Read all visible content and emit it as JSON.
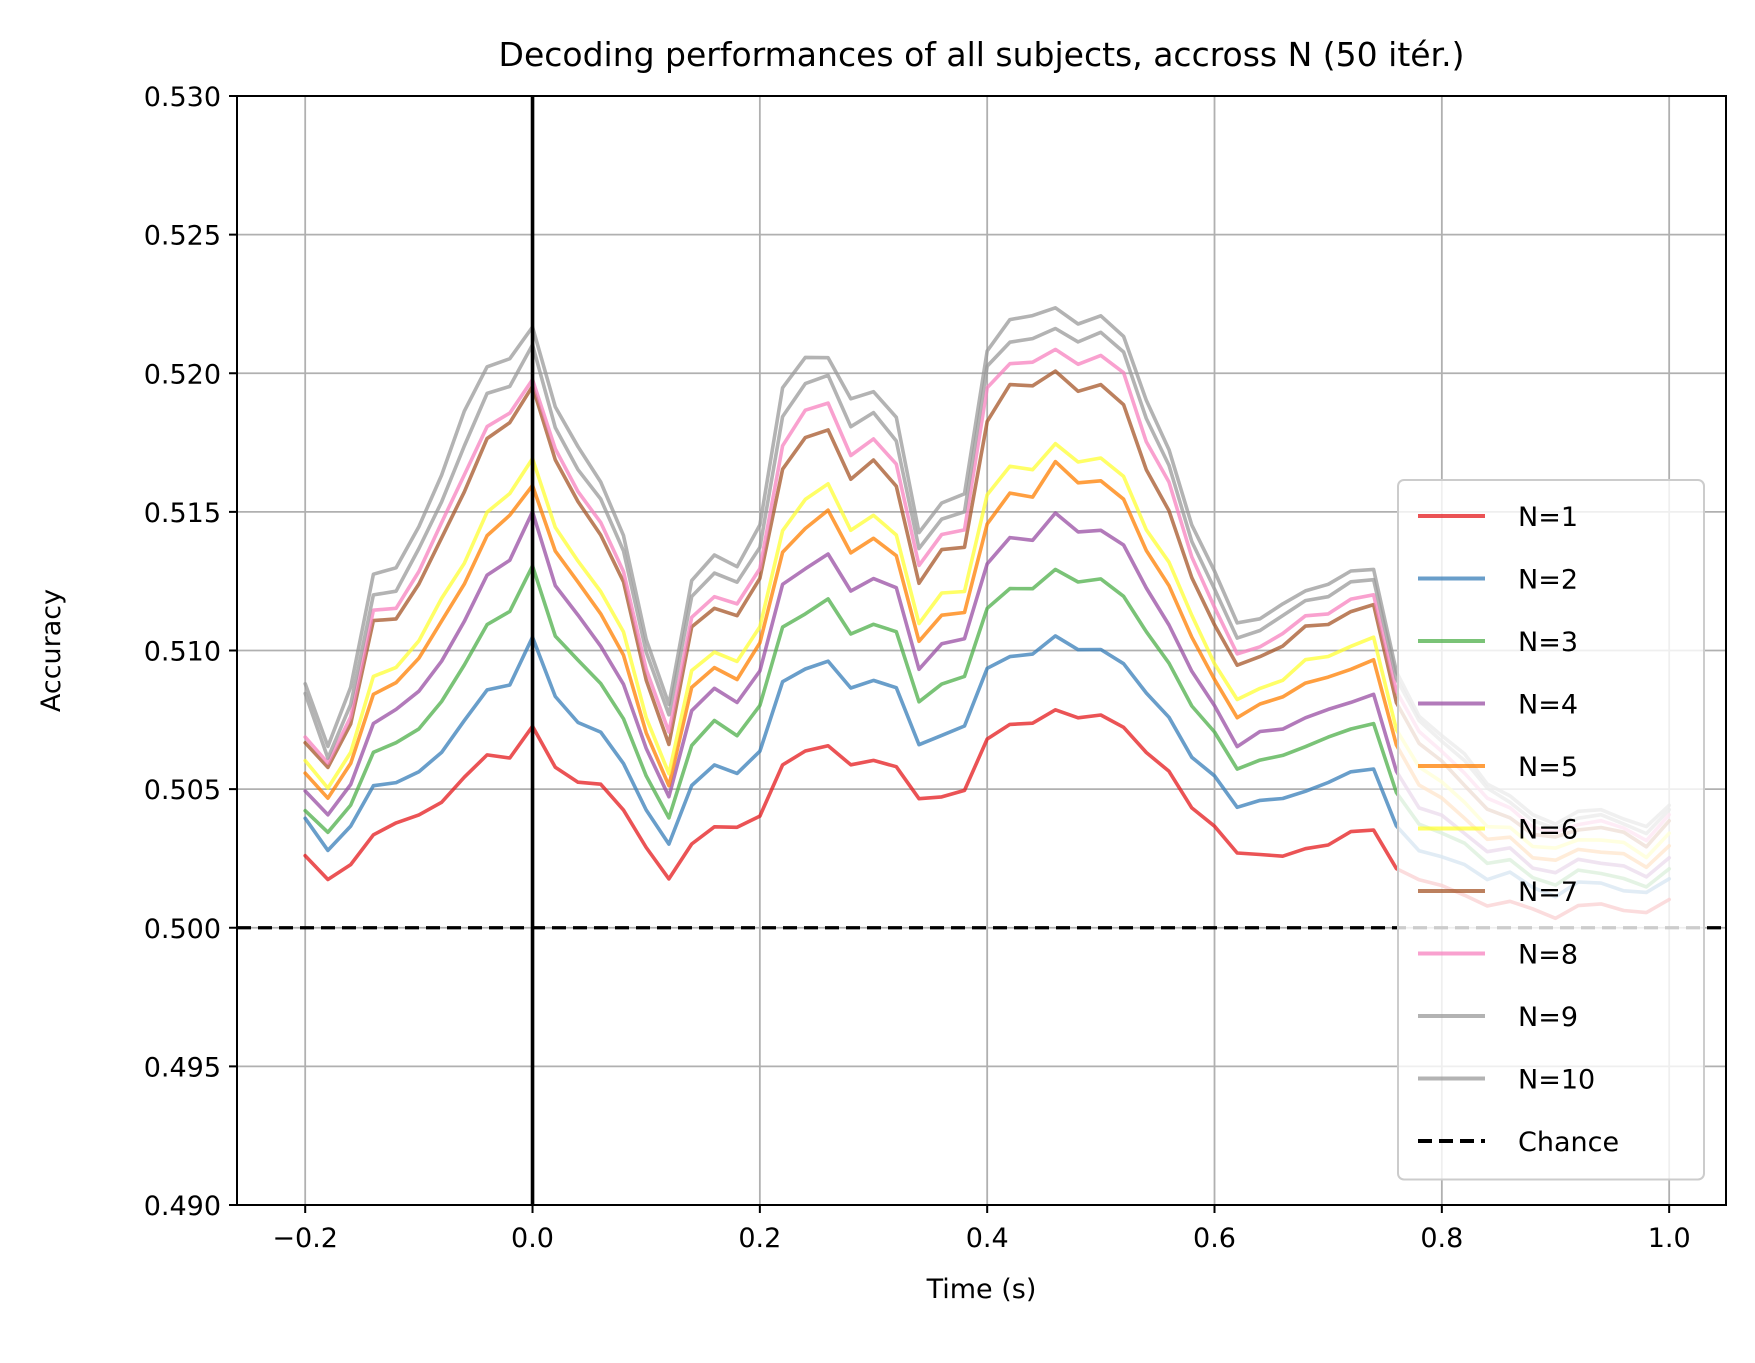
{
  "chart_data": {
    "type": "line",
    "title": "Decoding performances of all subjects, accross N (50 itér.)",
    "xlabel": "Time (s)",
    "ylabel": "Accuracy",
    "xlim": [
      -0.26,
      1.05
    ],
    "ylim": [
      0.49,
      0.53
    ],
    "xticks": [
      -0.2,
      0.0,
      0.2,
      0.4,
      0.6,
      0.8,
      1.0
    ],
    "xtick_labels": [
      "−0.2",
      "0.0",
      "0.2",
      "0.4",
      "0.6",
      "0.8",
      "1.0"
    ],
    "yticks": [
      0.49,
      0.495,
      0.5,
      0.505,
      0.51,
      0.515,
      0.52,
      0.525,
      0.53
    ],
    "ytick_labels": [
      "0.490",
      "0.495",
      "0.500",
      "0.505",
      "0.510",
      "0.515",
      "0.520",
      "0.525",
      "0.530"
    ],
    "grid": true,
    "legend_position": "lower-right",
    "stimulus_onset_x": 0.0,
    "x": [
      -0.2,
      -0.18,
      -0.16,
      -0.14,
      -0.12,
      -0.1,
      -0.08,
      -0.06,
      -0.04,
      -0.02,
      0.0,
      0.02,
      0.04,
      0.06,
      0.08,
      0.1,
      0.12,
      0.14,
      0.16,
      0.18,
      0.2,
      0.22,
      0.24,
      0.26,
      0.28,
      0.3,
      0.32,
      0.34,
      0.36,
      0.38,
      0.4,
      0.42,
      0.44,
      0.46,
      0.48,
      0.5,
      0.52,
      0.54,
      0.56,
      0.58,
      0.6,
      0.62,
      0.64,
      0.66,
      0.68,
      0.7,
      0.72,
      0.74,
      0.76,
      0.78,
      0.8,
      0.82,
      0.84,
      0.86,
      0.88,
      0.9,
      0.92,
      0.94,
      0.96,
      0.98,
      1.0
    ],
    "series": [
      {
        "name": "N=1",
        "color": "#e41a1c",
        "values": [
          0.5026,
          0.5018,
          0.5022,
          0.5034,
          0.5038,
          0.504,
          0.5046,
          0.5054,
          0.5062,
          0.5062,
          0.5072,
          0.5058,
          0.5053,
          0.5051,
          0.5043,
          0.5029,
          0.5017,
          0.5031,
          0.5036,
          0.5036,
          0.5041,
          0.5058,
          0.5064,
          0.5066,
          0.5058,
          0.5061,
          0.5058,
          0.5046,
          0.5048,
          0.5049,
          0.5068,
          0.5074,
          0.5073,
          0.5079,
          0.5076,
          0.5076,
          0.5073,
          0.5063,
          0.5056,
          0.5044,
          0.5036,
          0.5027,
          0.5027,
          0.5025,
          0.5029,
          0.503,
          0.5034,
          0.5036,
          0.5021,
          0.5017,
          0.5016,
          0.5011,
          0.5008,
          0.501,
          0.5006,
          0.5004,
          0.5008,
          0.5008,
          0.5007,
          0.5005,
          0.501
        ]
      },
      {
        "name": "N=2",
        "color": "#377eb8",
        "values": [
          0.504,
          0.5028,
          0.5036,
          0.5052,
          0.5052,
          0.5056,
          0.5064,
          0.5074,
          0.5086,
          0.5088,
          0.5104,
          0.5084,
          0.5074,
          0.507,
          0.506,
          0.5042,
          0.503,
          0.5052,
          0.5058,
          0.5056,
          0.5064,
          0.5088,
          0.5094,
          0.5096,
          0.5086,
          0.509,
          0.5086,
          0.5066,
          0.507,
          0.5072,
          0.5094,
          0.5098,
          0.5098,
          0.5106,
          0.51,
          0.51,
          0.5096,
          0.5084,
          0.5076,
          0.5062,
          0.5054,
          0.5044,
          0.5046,
          0.5046,
          0.505,
          0.5052,
          0.5056,
          0.5058,
          0.5036,
          0.5028,
          0.5026,
          0.5022,
          0.5018,
          0.502,
          0.5014,
          0.5012,
          0.5016,
          0.5016,
          0.5014,
          0.5012,
          0.5018
        ]
      },
      {
        "name": "N=3",
        "color": "#4daf4a",
        "values": [
          0.5043,
          0.5034,
          0.5044,
          0.5064,
          0.5066,
          0.5072,
          0.5082,
          0.5094,
          0.511,
          0.5114,
          0.513,
          0.5106,
          0.5096,
          0.5088,
          0.5076,
          0.5054,
          0.504,
          0.5066,
          0.5074,
          0.507,
          0.508,
          0.5108,
          0.5114,
          0.5118,
          0.5106,
          0.511,
          0.5106,
          0.5082,
          0.5088,
          0.509,
          0.5116,
          0.5122,
          0.5122,
          0.513,
          0.5124,
          0.5126,
          0.512,
          0.5106,
          0.5096,
          0.508,
          0.507,
          0.5058,
          0.506,
          0.5062,
          0.5066,
          0.5068,
          0.5072,
          0.5074,
          0.5048,
          0.5038,
          0.5034,
          0.503,
          0.5024,
          0.5024,
          0.5018,
          0.5016,
          0.502,
          0.502,
          0.5018,
          0.5014,
          0.5022
        ]
      },
      {
        "name": "N=4",
        "color": "#984ea3",
        "values": [
          0.505,
          0.504,
          0.5052,
          0.5074,
          0.5078,
          0.5086,
          0.5096,
          0.511,
          0.5128,
          0.5132,
          0.515,
          0.5124,
          0.5112,
          0.5102,
          0.5088,
          0.5064,
          0.5048,
          0.5078,
          0.5086,
          0.5082,
          0.5092,
          0.5124,
          0.513,
          0.5134,
          0.5122,
          0.5126,
          0.5122,
          0.5094,
          0.5102,
          0.5104,
          0.5132,
          0.514,
          0.514,
          0.515,
          0.5142,
          0.5144,
          0.5138,
          0.5122,
          0.511,
          0.5092,
          0.508,
          0.5066,
          0.507,
          0.5072,
          0.5076,
          0.5078,
          0.5082,
          0.5084,
          0.5056,
          0.5044,
          0.504,
          0.5034,
          0.5028,
          0.5028,
          0.5022,
          0.502,
          0.5024,
          0.5024,
          0.5022,
          0.5018,
          0.5026
        ]
      },
      {
        "name": "N=5",
        "color": "#ff7f00",
        "values": [
          0.5056,
          0.5046,
          0.506,
          0.5084,
          0.5088,
          0.5098,
          0.511,
          0.5124,
          0.5142,
          0.5148,
          0.516,
          0.5136,
          0.5124,
          0.5114,
          0.5098,
          0.507,
          0.5052,
          0.5086,
          0.5094,
          0.509,
          0.5102,
          0.5136,
          0.5144,
          0.515,
          0.5136,
          0.514,
          0.5134,
          0.5104,
          0.5112,
          0.5114,
          0.5146,
          0.5156,
          0.5156,
          0.5168,
          0.516,
          0.5162,
          0.5154,
          0.5136,
          0.5124,
          0.5104,
          0.509,
          0.5076,
          0.508,
          0.5084,
          0.5088,
          0.509,
          0.5094,
          0.5096,
          0.5066,
          0.5052,
          0.5046,
          0.504,
          0.5032,
          0.5032,
          0.5026,
          0.5024,
          0.5028,
          0.5028,
          0.5026,
          0.5022,
          0.503
        ]
      },
      {
        "name": "N=6",
        "color": "#ffff33",
        "values": [
          0.506,
          0.505,
          0.5064,
          0.509,
          0.5094,
          0.5104,
          0.5118,
          0.5132,
          0.515,
          0.5156,
          0.517,
          0.5144,
          0.5132,
          0.5122,
          0.5106,
          0.5076,
          0.5056,
          0.5092,
          0.51,
          0.5096,
          0.5108,
          0.5144,
          0.5154,
          0.516,
          0.5144,
          0.5148,
          0.5142,
          0.511,
          0.512,
          0.5122,
          0.5156,
          0.5166,
          0.5166,
          0.5174,
          0.5168,
          0.517,
          0.5162,
          0.5144,
          0.5132,
          0.5112,
          0.5096,
          0.5082,
          0.5086,
          0.509,
          0.5096,
          0.5098,
          0.5102,
          0.5104,
          0.5072,
          0.5058,
          0.5052,
          0.5046,
          0.5036,
          0.5036,
          0.503,
          0.5028,
          0.5032,
          0.5032,
          0.503,
          0.5026,
          0.5034
        ]
      },
      {
        "name": "N=7",
        "color": "#a65628",
        "values": [
          0.5066,
          0.5058,
          0.5074,
          0.511,
          0.5112,
          0.5124,
          0.514,
          0.5158,
          0.5176,
          0.5182,
          0.5196,
          0.5168,
          0.5154,
          0.5142,
          0.5124,
          0.509,
          0.5066,
          0.5108,
          0.5116,
          0.5112,
          0.5126,
          0.5166,
          0.5176,
          0.518,
          0.5162,
          0.5168,
          0.516,
          0.5124,
          0.5136,
          0.5138,
          0.5182,
          0.5196,
          0.5196,
          0.52,
          0.5194,
          0.5196,
          0.5188,
          0.5166,
          0.515,
          0.5126,
          0.511,
          0.5094,
          0.5098,
          0.5102,
          0.5108,
          0.511,
          0.5114,
          0.5116,
          0.5082,
          0.5066,
          0.506,
          0.5052,
          0.5042,
          0.504,
          0.5034,
          0.5032,
          0.5036,
          0.5036,
          0.5034,
          0.503,
          0.5038
        ]
      },
      {
        "name": "N=8",
        "color": "#f781bf",
        "values": [
          0.5068,
          0.506,
          0.5076,
          0.5114,
          0.5116,
          0.5128,
          0.5146,
          0.5164,
          0.518,
          0.5186,
          0.5198,
          0.5172,
          0.5158,
          0.5146,
          0.5128,
          0.5094,
          0.507,
          0.5112,
          0.512,
          0.5116,
          0.513,
          0.5174,
          0.5186,
          0.519,
          0.517,
          0.5176,
          0.5168,
          0.513,
          0.5142,
          0.5144,
          0.5194,
          0.5204,
          0.5204,
          0.5208,
          0.5204,
          0.5206,
          0.52,
          0.5176,
          0.516,
          0.5134,
          0.5116,
          0.5098,
          0.5102,
          0.5106,
          0.5112,
          0.5114,
          0.5118,
          0.512,
          0.5086,
          0.507,
          0.5064,
          0.5056,
          0.5046,
          0.5044,
          0.5036,
          0.5034,
          0.5038,
          0.5038,
          0.5036,
          0.5032,
          0.504
        ]
      },
      {
        "name": "N=9",
        "color": "#999999",
        "values": [
          0.5084,
          0.5062,
          0.508,
          0.512,
          0.5122,
          0.5136,
          0.5154,
          0.5174,
          0.5192,
          0.5196,
          0.521,
          0.518,
          0.5166,
          0.5154,
          0.5136,
          0.51,
          0.5076,
          0.512,
          0.5128,
          0.5124,
          0.5138,
          0.5184,
          0.5196,
          0.52,
          0.518,
          0.5186,
          0.5176,
          0.5136,
          0.5148,
          0.515,
          0.5202,
          0.5212,
          0.5212,
          0.5216,
          0.5212,
          0.5214,
          0.5208,
          0.5184,
          0.5166,
          0.514,
          0.5122,
          0.5104,
          0.5108,
          0.5112,
          0.5118,
          0.512,
          0.5124,
          0.5126,
          0.509,
          0.5074,
          0.5068,
          0.506,
          0.505,
          0.5046,
          0.5038,
          0.5036,
          0.504,
          0.504,
          0.5038,
          0.5034,
          0.5042
        ]
      },
      {
        "name": "N=10",
        "color": "#999999",
        "values": [
          0.5088,
          0.5066,
          0.5086,
          0.5128,
          0.513,
          0.5144,
          0.5164,
          0.5186,
          0.5202,
          0.5206,
          0.5216,
          0.5188,
          0.5174,
          0.516,
          0.5142,
          0.5104,
          0.508,
          0.5126,
          0.5134,
          0.513,
          0.5146,
          0.5194,
          0.5206,
          0.5206,
          0.519,
          0.5194,
          0.5184,
          0.5142,
          0.5154,
          0.5156,
          0.5208,
          0.522,
          0.522,
          0.5224,
          0.5218,
          0.522,
          0.5214,
          0.519,
          0.5172,
          0.5146,
          0.5128,
          0.511,
          0.5112,
          0.5116,
          0.5122,
          0.5124,
          0.5128,
          0.513,
          0.5092,
          0.5076,
          0.507,
          0.5062,
          0.5052,
          0.5048,
          0.504,
          0.5038,
          0.5042,
          0.5042,
          0.504,
          0.5036,
          0.5044
        ]
      }
    ],
    "reference_lines": [
      {
        "name": "Chance",
        "y": 0.5,
        "style": "dashed",
        "color": "#000000"
      }
    ]
  }
}
